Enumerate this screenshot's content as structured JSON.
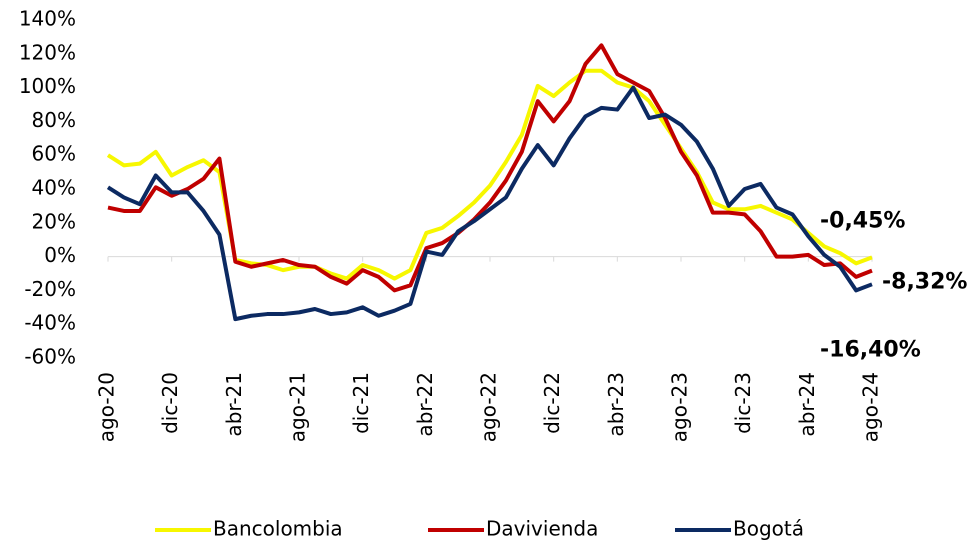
{
  "chart_data": {
    "type": "line",
    "categories": [
      "ago-20",
      null,
      null,
      null,
      "dic-20",
      null,
      null,
      null,
      "abr-21",
      null,
      null,
      null,
      "ago-21",
      null,
      null,
      null,
      "dic-21",
      null,
      null,
      null,
      "abr-22",
      null,
      null,
      null,
      "ago-22",
      null,
      null,
      null,
      "dic-22",
      null,
      null,
      null,
      "abr-23",
      null,
      null,
      null,
      "ago-23",
      null,
      null,
      null,
      "dic-23",
      null,
      null,
      null,
      "abr-24",
      null,
      null,
      null,
      "ago-24"
    ],
    "series": [
      {
        "name": "Bancolombia",
        "color": "#f7f700",
        "label_color": "#f5b700",
        "end_label": "-0,45%",
        "values": [
          60,
          54,
          55,
          62,
          48,
          53,
          57,
          50,
          -2,
          -4,
          -5,
          -8,
          -6,
          -6,
          -10,
          -13,
          -5,
          -8,
          -13,
          -8,
          14,
          17,
          24,
          32,
          42,
          56,
          72,
          101,
          95,
          103,
          110,
          110,
          103,
          100,
          92,
          78,
          64,
          50,
          32,
          28,
          28,
          30,
          26,
          22,
          14,
          6,
          2,
          -4,
          -0.45
        ]
      },
      {
        "name": "Davivienda",
        "color": "#c00000",
        "label_color": "#c00000",
        "end_label": "-8,32%",
        "values": [
          29,
          27,
          27,
          41,
          36,
          40,
          46,
          58,
          -3,
          -6,
          -4,
          -2,
          -5,
          -6,
          -12,
          -16,
          -8,
          -12,
          -20,
          -17,
          5,
          8,
          14,
          22,
          32,
          45,
          62,
          92,
          80,
          92,
          114,
          125,
          108,
          103,
          98,
          82,
          62,
          48,
          26,
          26,
          25,
          15,
          0,
          0,
          1,
          -5,
          -4,
          -12,
          -8.32
        ]
      },
      {
        "name": "Bogotá",
        "color": "#0c2a62",
        "label_color": "#1b2f5e",
        "end_label": "-16,40%",
        "values": [
          41,
          35,
          31,
          48,
          38,
          38,
          27,
          13,
          -37,
          -35,
          -34,
          -34,
          -33,
          -31,
          -34,
          -33,
          -30,
          -35,
          -32,
          -28,
          3,
          1,
          15,
          21,
          28,
          35,
          52,
          66,
          54,
          70,
          83,
          88,
          87,
          100,
          82,
          84,
          78,
          68,
          52,
          30,
          40,
          43,
          29,
          25,
          12,
          1,
          -6,
          -20,
          -16.4
        ]
      }
    ],
    "ylim": [
      -60,
      140
    ],
    "yticks": [
      {
        "value": -60,
        "label": "-60%"
      },
      {
        "value": -40,
        "label": "-40%"
      },
      {
        "value": -20,
        "label": "-20%"
      },
      {
        "value": 0,
        "label": "0%"
      },
      {
        "value": 20,
        "label": "20%"
      },
      {
        "value": 40,
        "label": "40%"
      },
      {
        "value": 60,
        "label": "60%"
      },
      {
        "value": 80,
        "label": "80%"
      },
      {
        "value": 100,
        "label": "100%"
      },
      {
        "value": 120,
        "label": "120%"
      },
      {
        "value": 140,
        "label": "140%"
      }
    ],
    "legend": "bottom",
    "grid": false
  }
}
